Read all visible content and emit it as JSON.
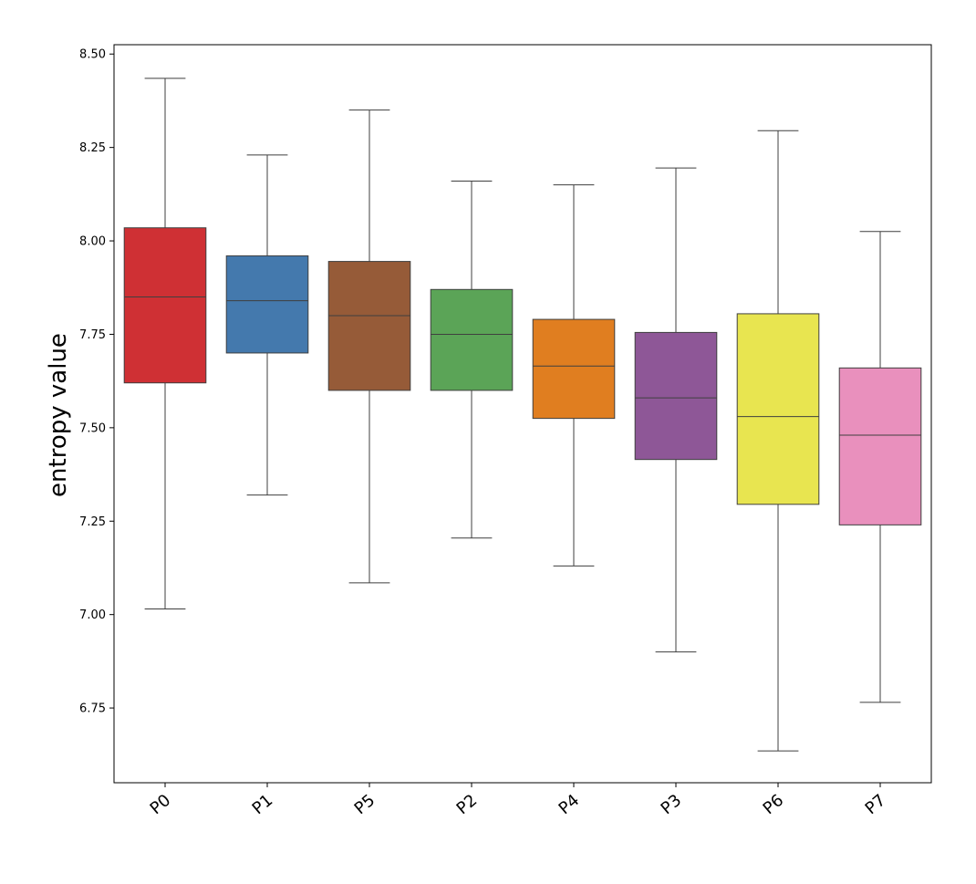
{
  "chart_data": {
    "type": "box",
    "title": "",
    "xlabel": "",
    "ylabel": "entropy value",
    "ylim": [
      6.55,
      8.525
    ],
    "yticks": [
      "6.75",
      "7.00",
      "7.25",
      "7.50",
      "7.75",
      "8.00",
      "8.25",
      "8.50"
    ],
    "ytick_values": [
      6.75,
      7.0,
      7.25,
      7.5,
      7.75,
      8.0,
      8.25,
      8.5
    ],
    "grid": false,
    "legend": "none",
    "categories": [
      "P0",
      "P1",
      "P5",
      "P2",
      "P4",
      "P3",
      "P6",
      "P7"
    ],
    "colors": [
      "#cf3034",
      "#4479ad",
      "#965b38",
      "#5ba457",
      "#e07e20",
      "#8e5797",
      "#e8e550",
      "#e990bd"
    ],
    "boxes": [
      {
        "name": "P0",
        "whisker_low": 7.015,
        "q1": 7.62,
        "median": 7.85,
        "q3": 8.035,
        "whisker_high": 8.435
      },
      {
        "name": "P1",
        "whisker_low": 7.32,
        "q1": 7.7,
        "median": 7.84,
        "q3": 7.96,
        "whisker_high": 8.23
      },
      {
        "name": "P5",
        "whisker_low": 7.085,
        "q1": 7.6,
        "median": 7.8,
        "q3": 7.945,
        "whisker_high": 8.35
      },
      {
        "name": "P2",
        "whisker_low": 7.205,
        "q1": 7.6,
        "median": 7.75,
        "q3": 7.87,
        "whisker_high": 8.16
      },
      {
        "name": "P4",
        "whisker_low": 7.13,
        "q1": 7.525,
        "median": 7.665,
        "q3": 7.79,
        "whisker_high": 8.15
      },
      {
        "name": "P3",
        "whisker_low": 6.9,
        "q1": 7.415,
        "median": 7.58,
        "q3": 7.755,
        "whisker_high": 8.195
      },
      {
        "name": "P6",
        "whisker_low": 6.635,
        "q1": 7.295,
        "median": 7.53,
        "q3": 7.805,
        "whisker_high": 8.295
      },
      {
        "name": "P7",
        "whisker_low": 6.765,
        "q1": 7.24,
        "median": 7.48,
        "q3": 7.66,
        "whisker_high": 8.025
      }
    ]
  }
}
